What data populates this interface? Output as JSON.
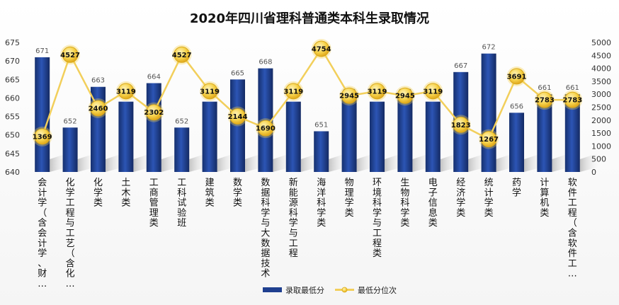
{
  "chart_data": {
    "type": "bar",
    "title": "2020年四川省理科普通类本科生录取情况",
    "categories": [
      "会计学（含会计学、财…",
      "化学工程与工艺（含化…",
      "化学类",
      "土木类",
      "工商管理类",
      "工科试验班",
      "建筑类",
      "数学类",
      "数据科学与大数据技术",
      "新能源科学与工程",
      "海洋科学类",
      "物理学类",
      "环境科学与工程类",
      "生物科学类",
      "电子信息类",
      "经济学类",
      "统计学类",
      "药学",
      "计算机类",
      "软件工程（含软件工…"
    ],
    "series": [
      {
        "name": "录取最低分",
        "type": "bar",
        "axis": "left",
        "color": "#1f3f8f",
        "values": [
          671,
          652,
          663,
          659,
          664,
          652,
          659,
          665,
          668,
          659,
          651,
          660,
          659,
          660,
          659,
          667,
          672,
          656,
          661,
          661
        ]
      },
      {
        "name": "最低分位次",
        "type": "line",
        "axis": "right",
        "color": "#f2cf5b",
        "values": [
          1369,
          4527,
          2460,
          3119,
          2302,
          4527,
          3119,
          2144,
          1690,
          3119,
          4754,
          2945,
          3119,
          2945,
          3119,
          1823,
          1267,
          3691,
          2783,
          2783
        ]
      }
    ],
    "y_left": {
      "min": 640,
      "max": 675,
      "ticks": [
        640,
        645,
        650,
        655,
        660,
        665,
        670,
        675
      ]
    },
    "y_right": {
      "min": 0,
      "max": 5000,
      "ticks": [
        0,
        500,
        1000,
        1500,
        2000,
        2500,
        3000,
        3500,
        4000,
        4500,
        5000
      ]
    },
    "grid": false,
    "legend": {
      "position": "bottom"
    }
  }
}
